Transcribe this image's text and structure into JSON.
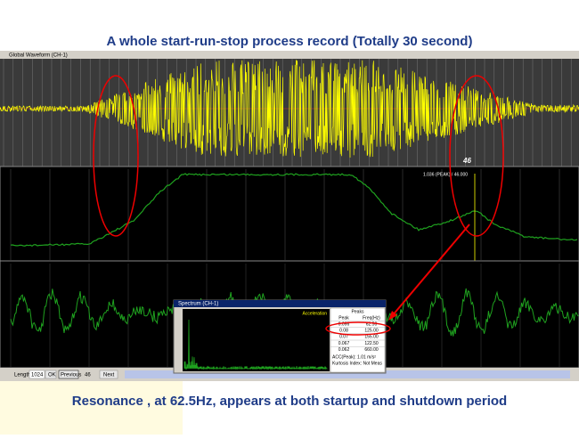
{
  "title": "A whole start-run-stop process record (Totally 30 second)",
  "waveform_window": {
    "title": "Global Waveform (CH-1)",
    "marker": "46"
  },
  "trend_window": {
    "readout": "1.036 (PEAK) / 46.000"
  },
  "controls": {
    "length_label": "Length",
    "length_value": "1024",
    "ok": "OK",
    "previous": "Previous",
    "index": "46",
    "next": "Next"
  },
  "spectrum_window": {
    "title": "Spectrum (CH-1)",
    "label": "Acceleration",
    "peaks": {
      "title": "Peaks",
      "columns": [
        "Peak",
        "Freq(Hz)"
      ],
      "rows": [
        [
          "0.096",
          "62.50"
        ],
        [
          "0.08",
          "125.00"
        ],
        [
          "0.07",
          "155.00"
        ],
        [
          "0.067",
          "122.50"
        ],
        [
          "0.062",
          "660.00"
        ]
      ]
    },
    "acc": "ACC(Peak): 1.01 m/s²",
    "kurtosis": "Kurtosis Index: Not Meas"
  },
  "caption": "Resonance , at 62.5Hz, appears at both startup and shutdown period"
}
